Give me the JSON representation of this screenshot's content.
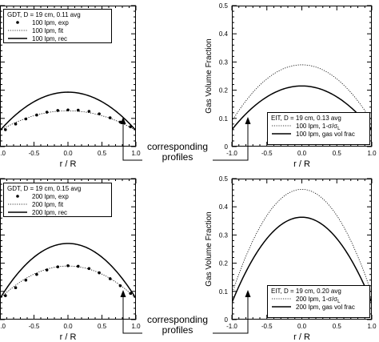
{
  "annotation": {
    "line1": "corresponding",
    "line2": "profiles"
  },
  "chart_data": [
    {
      "id": "gdt-100",
      "type": "line",
      "xlabel": "r / R",
      "ylabel": "",
      "xlim": [
        -1.0,
        1.0
      ],
      "ylim": [
        0,
        0.5
      ],
      "xticks": [
        -1.0,
        -0.5,
        0.0,
        0.5,
        1.0
      ],
      "xtick_labels": [
        "-1.0",
        "-0.5",
        "0.0",
        "0.5",
        "1.0"
      ],
      "yticks": [
        0,
        0.1,
        0.2,
        0.3,
        0.4,
        0.5
      ],
      "ytick_labels": [],
      "grid": false,
      "legend_title": "GDT, D = 19 cm, 0.11 avg",
      "legend_position": "top-left",
      "series": [
        {
          "name": "100 lpm, exp",
          "style": "dots",
          "x": [
            -0.92,
            -0.77,
            -0.62,
            -0.46,
            -0.31,
            -0.15,
            0.0,
            0.15,
            0.31,
            0.46,
            0.62,
            0.77,
            0.92
          ],
          "y": [
            0.06,
            0.08,
            0.098,
            0.112,
            0.122,
            0.128,
            0.13,
            0.129,
            0.125,
            0.116,
            0.102,
            0.087,
            0.07
          ]
        },
        {
          "name": "100 lpm, fit",
          "style": "dotted",
          "formula": "parabola",
          "peak": 0.127,
          "edge": 0.057
        },
        {
          "name": "100 lpm, rec",
          "style": "solid",
          "formula": "parabola",
          "peak": 0.193,
          "edge": 0.057
        }
      ]
    },
    {
      "id": "eit-100",
      "type": "line",
      "xlabel": "r / R",
      "ylabel": "Gas Volume Fraction",
      "xlim": [
        -1.0,
        1.0
      ],
      "ylim": [
        0,
        0.5
      ],
      "xticks": [
        -1.0,
        -0.5,
        0.0,
        0.5,
        1.0
      ],
      "xtick_labels": [
        "-1.0",
        "-0.5",
        "0.0",
        "0.5",
        "1.0"
      ],
      "yticks": [
        0,
        0.1,
        0.2,
        0.3,
        0.4,
        0.5
      ],
      "ytick_labels": [
        "0",
        "0.1",
        "0.2",
        "0.3",
        "0.4",
        "0.5"
      ],
      "grid": false,
      "legend_title": "EIT, D = 19 cm, 0.13 avg",
      "legend_position": "bottom-right",
      "series": [
        {
          "name": "100 lpm, 1-σ/σ",
          "name_sub": "L",
          "style": "dotted",
          "formula": "parabola",
          "peak": 0.29,
          "edge": 0.09
        },
        {
          "name": "100 lpm, gas vol frac",
          "style": "solid",
          "formula": "parabola",
          "peak": 0.215,
          "edge": 0.06
        }
      ]
    },
    {
      "id": "gdt-200",
      "type": "line",
      "xlabel": "r / R",
      "ylabel": "",
      "xlim": [
        -1.0,
        1.0
      ],
      "ylim": [
        0,
        0.5
      ],
      "xticks": [
        -1.0,
        -0.5,
        0.0,
        0.5,
        1.0
      ],
      "xtick_labels": [
        "-1.0",
        "-0.5",
        "0.0",
        "0.5",
        "1.0"
      ],
      "yticks": [
        0,
        0.1,
        0.2,
        0.3,
        0.4,
        0.5
      ],
      "ytick_labels": [],
      "grid": false,
      "legend_title": "GDT, D = 19 cm, 0.15 avg",
      "legend_position": "top-left",
      "series": [
        {
          "name": "200 lpm, exp",
          "style": "dots",
          "x": [
            -0.92,
            -0.77,
            -0.62,
            -0.46,
            -0.31,
            -0.15,
            0.0,
            0.15,
            0.31,
            0.46,
            0.62,
            0.77,
            0.92
          ],
          "y": [
            0.085,
            0.113,
            0.14,
            0.16,
            0.176,
            0.187,
            0.191,
            0.189,
            0.181,
            0.166,
            0.145,
            0.12,
            0.093
          ]
        },
        {
          "name": "200 lpm, fit",
          "style": "dotted",
          "formula": "parabola",
          "peak": 0.19,
          "edge": 0.075
        },
        {
          "name": "200 lpm, rec",
          "style": "solid",
          "formula": "parabola",
          "peak": 0.27,
          "edge": 0.075
        }
      ]
    },
    {
      "id": "eit-200",
      "type": "line",
      "xlabel": "r / R",
      "ylabel": "Gas Volume Fraction",
      "xlim": [
        -1.0,
        1.0
      ],
      "ylim": [
        0,
        0.5
      ],
      "xticks": [
        -1.0,
        -0.5,
        0.0,
        0.5,
        1.0
      ],
      "xtick_labels": [
        "-1.0",
        "-0.5",
        "0.0",
        "0.5",
        "1.0"
      ],
      "yticks": [
        0,
        0.1,
        0.2,
        0.3,
        0.4,
        0.5
      ],
      "ytick_labels": [
        "0",
        "0.1",
        "0.2",
        "0.3",
        "0.4",
        "0.5"
      ],
      "grid": false,
      "legend_title": "EIT, D = 19 cm, 0.20 avg",
      "legend_position": "bottom-right",
      "series": [
        {
          "name": "200 lpm, 1-σ/σ",
          "name_sub": "L",
          "style": "dotted",
          "formula": "parabola",
          "peak": 0.462,
          "edge": 0.09
        },
        {
          "name": "200 lpm, gas vol frac",
          "style": "solid",
          "formula": "parabola",
          "peak": 0.363,
          "edge": 0.06
        }
      ]
    }
  ]
}
